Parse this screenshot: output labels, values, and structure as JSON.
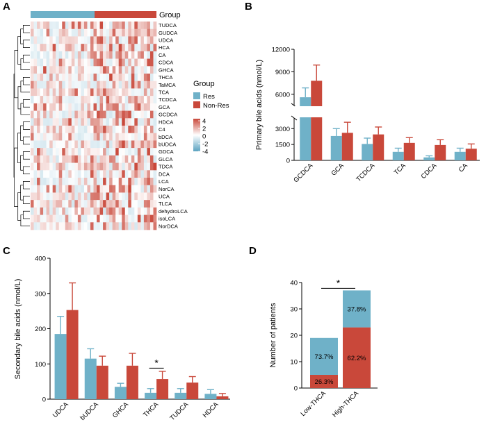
{
  "colors": {
    "res": "#6fb1c8",
    "nonres": "#c9483a"
  },
  "panels": {
    "a": "A",
    "b": "B",
    "c": "C",
    "d": "D"
  },
  "heatmap": {
    "group_title": "Group",
    "rows": [
      "TUDCA",
      "GUDCA",
      "UDCA",
      "HCA",
      "CA",
      "CDCA",
      "GHCA",
      "THCA",
      "TaMCA",
      "TCA",
      "TCDCA",
      "GCA",
      "GCDCA",
      "HDCA",
      "C4",
      "bDCA",
      "bUDCA",
      "GDCA",
      "GLCA",
      "TDCA",
      "DCA",
      "LCA",
      "NorCA",
      "UCA",
      "TLCA",
      "dehydroLCA",
      "isoLCA",
      "NorDCA"
    ],
    "legend_title": "Group",
    "legend_res": "Res",
    "legend_nonres": "Non-Res",
    "scale_ticks": [
      "4",
      "2",
      "0",
      "-2",
      "-4"
    ],
    "n_cols": 40,
    "n_res": 19
  },
  "chart_data": [
    {
      "panel": "B",
      "type": "bar",
      "ylabel": "Primary bile acids (nmol/L)",
      "categories": [
        "GCDCA",
        "GCA",
        "TCDCA",
        "TCA",
        "CDCA",
        "CA"
      ],
      "series": [
        {
          "name": "Res",
          "values": [
            5600,
            2300,
            1550,
            800,
            280,
            800
          ],
          "errors": [
            1250,
            700,
            550,
            350,
            150,
            350
          ]
        },
        {
          "name": "Non-Res",
          "values": [
            7800,
            2600,
            2450,
            1650,
            1450,
            1100
          ],
          "errors": [
            2100,
            1000,
            700,
            500,
            500,
            450
          ]
        }
      ],
      "yticks": [
        "0",
        "1500",
        "3000",
        "6000",
        "9000",
        "12000"
      ],
      "axis_break": [
        4000,
        4500
      ],
      "ylim": [
        0,
        12000
      ]
    },
    {
      "panel": "C",
      "type": "bar",
      "ylabel": "Secondary bile acids (nmol/L)",
      "categories": [
        "UDCA",
        "bUDCA",
        "GHCA",
        "THCA",
        "TUDCA",
        "HDCA"
      ],
      "series": [
        {
          "name": "Res",
          "values": [
            185,
            115,
            35,
            18,
            18,
            15
          ],
          "errors": [
            50,
            28,
            10,
            12,
            12,
            12
          ]
        },
        {
          "name": "Non-Res",
          "values": [
            253,
            95,
            95,
            57,
            47,
            8
          ],
          "errors": [
            77,
            27,
            35,
            22,
            17,
            8
          ]
        }
      ],
      "yticks": [
        "0",
        "100",
        "200",
        "300",
        "400"
      ],
      "ylim": [
        0,
        400
      ],
      "significance": {
        "category": "THCA",
        "label": "*"
      }
    },
    {
      "panel": "D",
      "type": "bar",
      "stacked": true,
      "ylabel": "Number of patients",
      "categories": [
        "Low-THCA",
        "High-THCA"
      ],
      "series": [
        {
          "name": "Non-Res",
          "values": [
            5,
            23
          ],
          "labels": [
            "26.3%",
            "62.2%"
          ]
        },
        {
          "name": "Res",
          "values": [
            14,
            14
          ],
          "labels": [
            "73.7%",
            "37.8%"
          ]
        }
      ],
      "yticks": [
        "0",
        "10",
        "20",
        "30",
        "40"
      ],
      "ylim": [
        0,
        40
      ],
      "significance": {
        "label": "*"
      }
    }
  ]
}
